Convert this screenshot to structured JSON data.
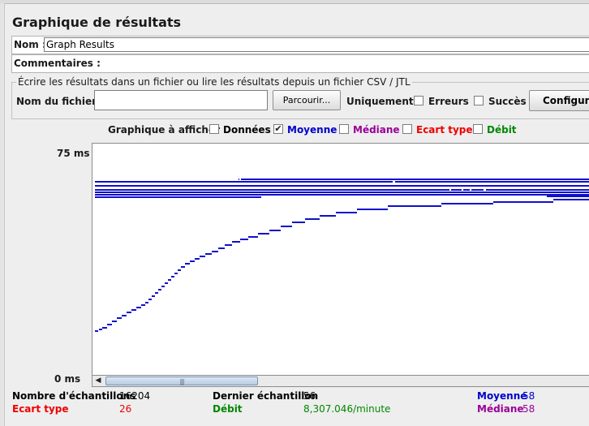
{
  "panel": {
    "title": "Graphique de résultats"
  },
  "name_row": {
    "label": "Nom :",
    "value": "Graph Results"
  },
  "comments_row": {
    "label": "Commentaires :"
  },
  "file_section": {
    "legend": "Écrire les résultats dans un fichier ou lire les résultats depuis un fichier CSV / JTL",
    "filename_label": "Nom du fichier :",
    "filename_value": "",
    "browse_label": "Parcourir...",
    "only_label": "Uniquement :",
    "errors_label": "Erreurs",
    "success_label": "Succès",
    "configure_label": "Configurer"
  },
  "display": {
    "label": "Graphique à afficher",
    "options": [
      {
        "label": "Données",
        "checked": false,
        "color": "#000000"
      },
      {
        "label": "Moyenne",
        "checked": true,
        "color": "#0000cc"
      },
      {
        "label": "Médiane",
        "checked": false,
        "color": "#990099"
      },
      {
        "label": "Ecart type",
        "checked": false,
        "color": "#ee0000"
      },
      {
        "label": "Débit",
        "checked": false,
        "color": "#008800"
      }
    ]
  },
  "graph": {
    "y_max_label": "75  ms",
    "y_min_label": "0  ms",
    "scroll_grip": "|||"
  },
  "stats": {
    "samples_label": "Nombre d'échantillons",
    "samples_value": "16204",
    "last_label": "Dernier échantillon",
    "last_value": "56",
    "average_label": "Moyenne",
    "average_value": "58",
    "deviation_label": "Ecart type",
    "deviation_value": "26",
    "throughput_label": "Débit",
    "throughput_value": "8,307.046/minute",
    "median_label": "Médiane",
    "median_value": "58"
  },
  "colors": {
    "average": "#0000cc",
    "median": "#990099",
    "deviation": "#ee0000",
    "throughput": "#008800"
  }
}
